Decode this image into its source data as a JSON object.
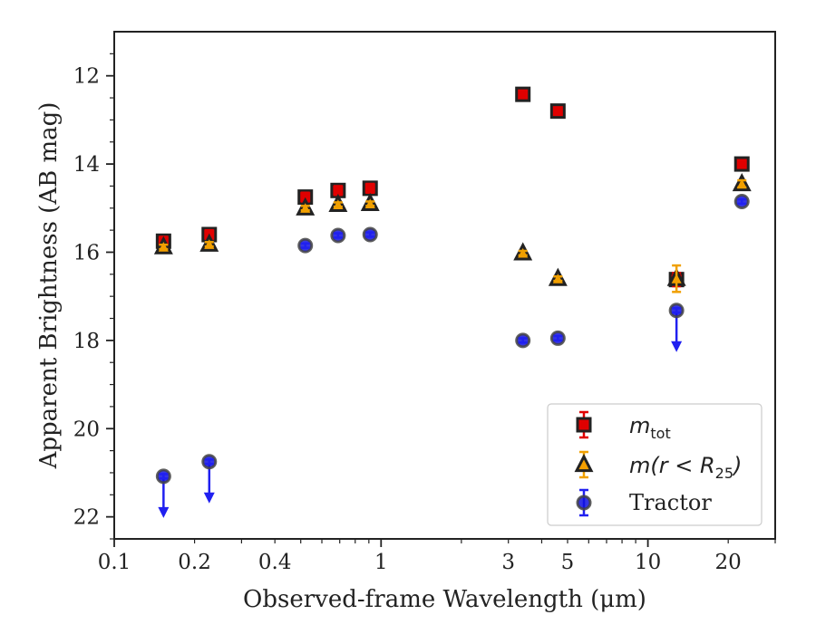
{
  "chart_data": {
    "type": "scatter",
    "title": "",
    "xlabel": "Observed-frame Wavelength (μm)",
    "ylabel": "Apparent Brightness (AB mag)",
    "xscale": "log",
    "xlim": [
      0.1,
      30
    ],
    "ylim": [
      22.5,
      11
    ],
    "y_inverted": true,
    "x_ticks": [
      {
        "value": 0.1,
        "label": "0.1"
      },
      {
        "value": 0.2,
        "label": "0.2"
      },
      {
        "value": 0.4,
        "label": "0.4"
      },
      {
        "value": 1,
        "label": "1"
      },
      {
        "value": 3,
        "label": "3"
      },
      {
        "value": 5,
        "label": "5"
      },
      {
        "value": 10,
        "label": "10"
      },
      {
        "value": 20,
        "label": "20"
      }
    ],
    "y_ticks": [
      {
        "value": 12,
        "label": "12"
      },
      {
        "value": 14,
        "label": "14"
      },
      {
        "value": 16,
        "label": "16"
      },
      {
        "value": 18,
        "label": "18"
      },
      {
        "value": 20,
        "label": "20"
      },
      {
        "value": 22,
        "label": "22"
      }
    ],
    "legend_position": "lower-right",
    "series": [
      {
        "name": "m_tot",
        "legend_main": "m",
        "legend_sub": "tot",
        "marker": "square",
        "color": "#e00000",
        "edge_color": "#222222",
        "error_color": "#e00000",
        "points": [
          {
            "x": 0.153,
            "y": 15.75,
            "err": 0.1
          },
          {
            "x": 0.227,
            "y": 15.6,
            "err": 0.1
          },
          {
            "x": 0.52,
            "y": 14.75,
            "err": 0.1
          },
          {
            "x": 0.69,
            "y": 14.6,
            "err": 0.1
          },
          {
            "x": 0.91,
            "y": 14.55,
            "err": 0.1
          },
          {
            "x": 3.4,
            "y": 12.42,
            "err": 0.05
          },
          {
            "x": 4.6,
            "y": 12.8,
            "err": 0.05
          },
          {
            "x": 12.8,
            "y": 16.62,
            "err": 0.15
          },
          {
            "x": 22.5,
            "y": 14.0,
            "err": 0.08
          }
        ]
      },
      {
        "name": "m(r < R_25)",
        "legend_main": "m(r < R",
        "legend_sub": "25",
        "legend_tail": ")",
        "marker": "triangle",
        "color": "#f5a000",
        "edge_color": "#222222",
        "error_color": "#f0a000",
        "points": [
          {
            "x": 0.153,
            "y": 15.88,
            "err": 0.05
          },
          {
            "x": 0.227,
            "y": 15.82,
            "err": 0.05
          },
          {
            "x": 0.52,
            "y": 15.0,
            "err": 0.05
          },
          {
            "x": 0.69,
            "y": 14.92,
            "err": 0.05
          },
          {
            "x": 0.91,
            "y": 14.9,
            "err": 0.05
          },
          {
            "x": 3.4,
            "y": 16.02,
            "err": 0.05
          },
          {
            "x": 4.6,
            "y": 16.6,
            "err": 0.05
          },
          {
            "x": 12.8,
            "y": 16.6,
            "err": 0.3
          },
          {
            "x": 22.5,
            "y": 14.45,
            "err": 0.08
          }
        ]
      },
      {
        "name": "Tractor",
        "legend_main": "Tractor",
        "marker": "circle",
        "color": "#1010e0",
        "edge_color": "#444444",
        "error_color": "#2020f0",
        "points": [
          {
            "x": 0.153,
            "y": 21.08,
            "err": 0.05,
            "upper_limit": true
          },
          {
            "x": 0.227,
            "y": 20.75,
            "err": 0.05,
            "upper_limit": true
          },
          {
            "x": 0.52,
            "y": 15.85,
            "err": 0.05
          },
          {
            "x": 0.69,
            "y": 15.62,
            "err": 0.05
          },
          {
            "x": 0.91,
            "y": 15.6,
            "err": 0.05
          },
          {
            "x": 3.4,
            "y": 18.0,
            "err": 0.05
          },
          {
            "x": 4.6,
            "y": 17.95,
            "err": 0.05
          },
          {
            "x": 12.8,
            "y": 17.32,
            "err": 0.05,
            "upper_limit": true
          },
          {
            "x": 22.5,
            "y": 14.85,
            "err": 0.05
          }
        ]
      }
    ]
  }
}
